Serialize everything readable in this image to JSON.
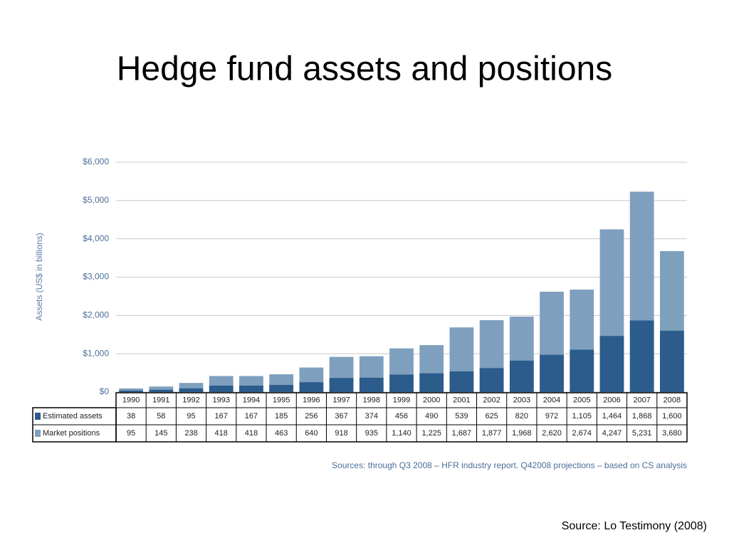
{
  "chart_data": {
    "type": "bar",
    "title": "Hedge fund assets and positions",
    "y_label": "Assets (US$ in billions)",
    "note": "Sources:  through Q3 2008 – HFR industry report.  Q42008 projections – based on CS analysis",
    "source": "Source: Lo Testimony (2008)",
    "categories": [
      "1990",
      "1991",
      "1992",
      "1993",
      "1994",
      "1995",
      "1996",
      "1997",
      "1998",
      "1999",
      "2000",
      "2001",
      "2002",
      "2003",
      "2004",
      "2005",
      "2006",
      "2007",
      "2008"
    ],
    "series": [
      {
        "name": "Estimated assets",
        "color": "#2b5c8c",
        "values": [
          38,
          58,
          95,
          167,
          167,
          185,
          256,
          367,
          374,
          456,
          490,
          539,
          625,
          820,
          972,
          1105,
          1464,
          1868,
          1600
        ],
        "value_labels": [
          "38",
          "58",
          "95",
          "167",
          "167",
          "185",
          "256",
          "367",
          "374",
          "456",
          "490",
          "539",
          "625",
          "820",
          "972",
          "1,105",
          "1,464",
          "1,868",
          "1,600"
        ]
      },
      {
        "name": "Market positions",
        "color": "#7f9fbe",
        "values": [
          95,
          145,
          238,
          418,
          418,
          463,
          640,
          918,
          935,
          1140,
          1225,
          1687,
          1877,
          1968,
          2620,
          2674,
          4247,
          5231,
          3680
        ],
        "value_labels": [
          "95",
          "145",
          "238",
          "418",
          "418",
          "463",
          "640",
          "918",
          "935",
          "1,140",
          "1,225",
          "1,687",
          "1,877",
          "1,968",
          "2,620",
          "2,674",
          "4,247",
          "5,231",
          "3,680"
        ]
      }
    ],
    "ylim": [
      0,
      6000
    ],
    "yticks": [
      {
        "value": 0,
        "label": "$0"
      },
      {
        "value": 1000,
        "label": "$1,000"
      },
      {
        "value": 2000,
        "label": "$2,000"
      },
      {
        "value": 3000,
        "label": "$3,000"
      },
      {
        "value": 4000,
        "label": "$4,000"
      },
      {
        "value": 5000,
        "label": "$5,000"
      },
      {
        "value": 6000,
        "label": "$6,000"
      }
    ],
    "grid": true
  }
}
